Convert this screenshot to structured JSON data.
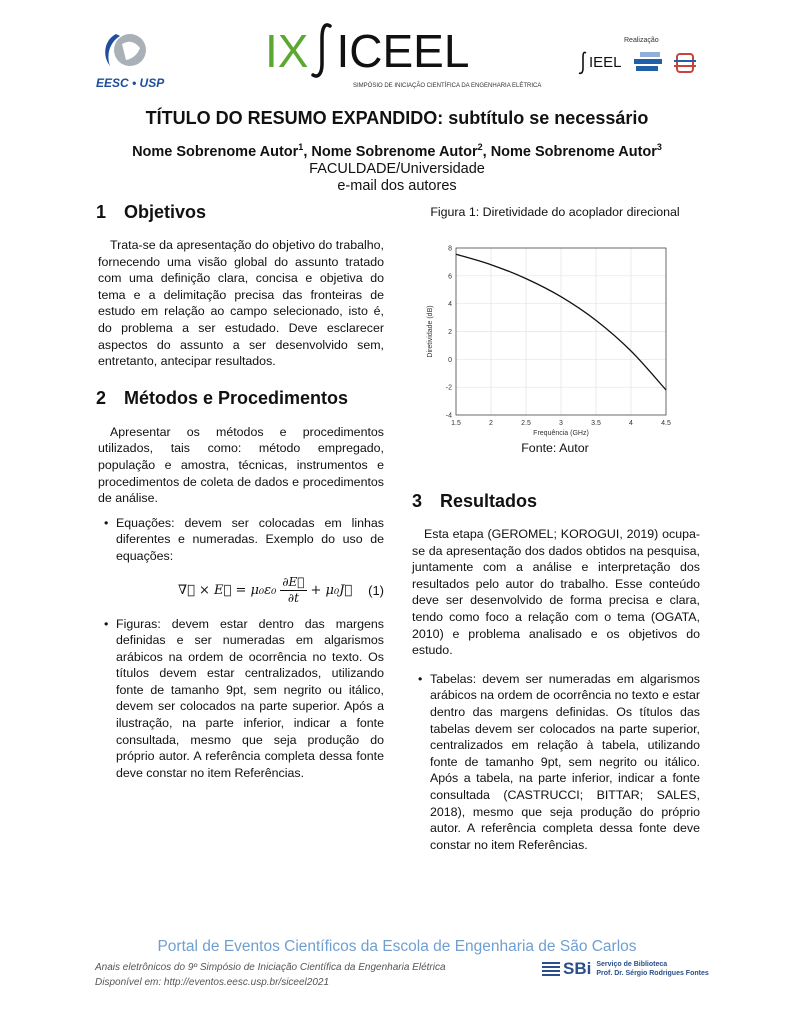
{
  "header": {
    "logo_left_text": "EESC • USP",
    "event_logo_roman": "IX",
    "event_logo_name": "ICEEL",
    "event_subtitle": "SIMPÓSIO DE INICIAÇÃO CIENTÍFICA DA ENGENHARIA ELÉTRICA",
    "realizacao_label": "Realização",
    "sieel_logo": "IEEL",
    "colors": {
      "green": "#5aa832",
      "blue": "#1f5fa8",
      "red": "#c8443a"
    }
  },
  "title": "TÍTULO DO RESUMO EXPANDIDO: subtítulo se necessário",
  "authors": [
    {
      "name": "Nome Sobrenome Autor",
      "sup": "1"
    },
    {
      "name": "Nome Sobrenome Autor",
      "sup": "2"
    },
    {
      "name": "Nome Sobrenome Autor",
      "sup": "3"
    }
  ],
  "affiliation": "FACULDADE/Universidade",
  "email": "e-mail dos autores",
  "sections": {
    "s1": {
      "num": "1",
      "title": "Objetivos",
      "text": "Trata-se da apresentação do objetivo do trabalho, fornecendo uma visão global do assunto tratado com uma definição clara, concisa e objetiva do tema e a delimitação precisa das fronteiras de estudo em relação ao campo selecionado, isto é, do problema a ser estudado. Deve esclarecer aspectos do assunto a ser desenvolvido sem, entretanto, antecipar resultados."
    },
    "s2": {
      "num": "2",
      "title": "Métodos e Procedimentos",
      "text": "Apresentar os métodos e procedimentos utilizados, tais como: método empregado, população e amostra, técnicas, instrumentos e procedimentos de coleta de dados e procedimentos de análise.",
      "bullet1": "Equações: devem ser colocadas em linhas diferentes e numeradas. Exemplo do uso de equações:",
      "equation": {
        "lhs": "∇⃗ × E⃗ = μ₀ε₀",
        "num": "∂E⃗",
        "den": "∂t",
        "rhs": "+ μ₀J⃗",
        "label": "(1)"
      },
      "bullet2": "Figuras: devem estar dentro das margens definidas e ser numeradas em algarismos arábicos na ordem de ocorrência no texto. Os títulos devem estar centralizados, utilizando fonte de tamanho 9pt, sem negrito ou itálico, devem ser colocados na parte superior. Após a ilustração, na parte inferior, indicar a fonte consultada, mesmo que seja produção do próprio autor. A referência completa dessa fonte deve constar no item Referências."
    },
    "s3": {
      "num": "3",
      "title": "Resultados",
      "text": "Esta etapa (GEROMEL; KOROGUI, 2019) ocupa-se da apresentação dos dados obtidos na pesquisa, juntamente com a análise e interpretação dos resultados pelo autor do trabalho. Esse conteúdo deve ser desenvolvido de forma precisa e clara, tendo como foco a relação com o tema (OGATA, 2010) e problema analisado e os objetivos do estudo.",
      "bullet1": "Tabelas: devem ser numeradas em algarismos arábicos na ordem de ocorrência no texto e estar dentro das margens definidas. Os títulos das tabelas devem ser colocados na parte superior, centralizados em relação à tabela, utilizando fonte de tamanho 9pt, sem negrito ou itálico. Após a tabela, na parte inferior, indicar a fonte consultada (CASTRUCCI; BITTAR; SALES, 2018), mesmo que seja produção do próprio autor. A referência completa dessa fonte deve constar no item Referências."
    }
  },
  "figure": {
    "caption": "Figura 1: Diretividade do acoplador direcional",
    "source": "Fonte: Autor"
  },
  "chart_data": {
    "type": "line",
    "xlabel": "Frequência (GHz)",
    "ylabel": "Diretividade (dB)",
    "xlim": [
      1.5,
      4.5
    ],
    "ylim": [
      -4,
      8
    ],
    "xticks": [
      "1.5",
      "2",
      "2.5",
      "3",
      "3.5",
      "4",
      "4.5"
    ],
    "yticks": [
      "-4",
      "-2",
      "0",
      "2",
      "4",
      "6",
      "8"
    ],
    "grid": true,
    "x": [
      1.5,
      2,
      2.5,
      3,
      3.5,
      4,
      4.5
    ],
    "y": [
      7.55,
      6.8,
      5.8,
      4.5,
      2.8,
      0.6,
      -2.2
    ]
  },
  "footer": {
    "portal": "Portal de Eventos Científicos da Escola de Engenharia de São Carlos",
    "anais": "Anais eletrônicos do 9º Simpósio de Iniciação Científica da Engenharia Elétrica",
    "disponivel": "Disponível em: http://eventos.eesc.usp.br/siceel2021",
    "sbi": "SBi",
    "sbi_line1": "Serviço de Biblioteca",
    "sbi_line2": "Prof. Dr. Sérgio Rodrigues Fontes"
  }
}
